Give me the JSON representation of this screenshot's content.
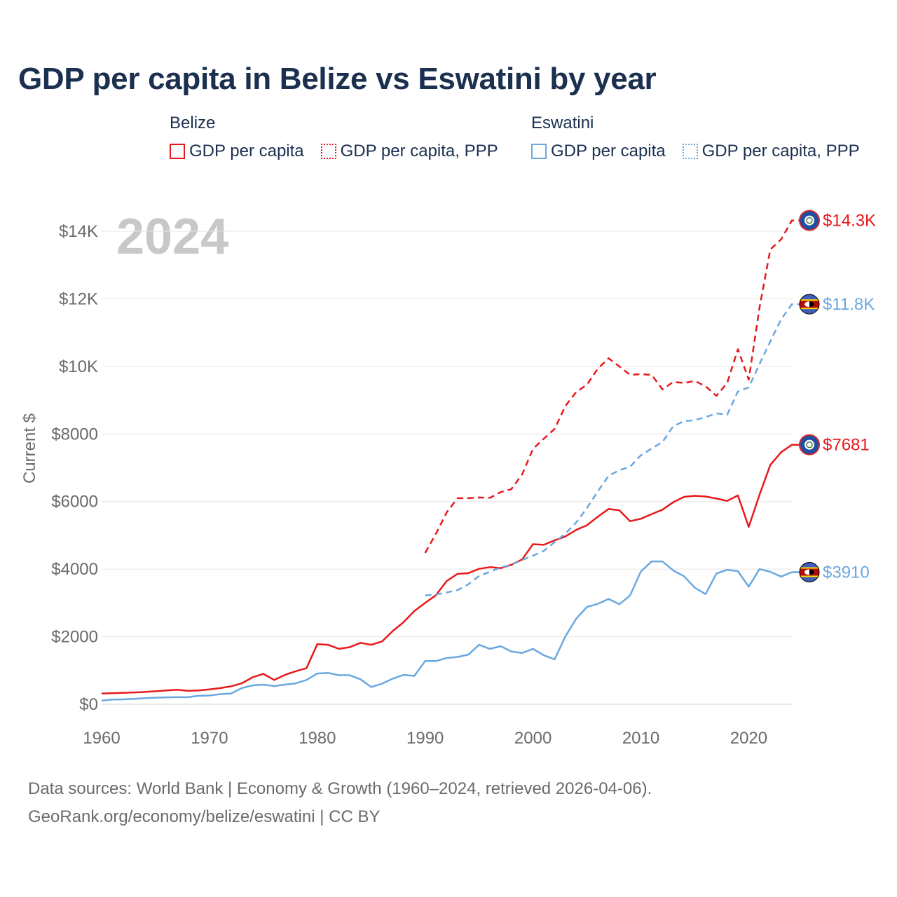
{
  "title": "GDP per capita in Belize vs Eswatini by year",
  "legend": {
    "groups": [
      {
        "name": "Belize",
        "color": "#e8191c",
        "items": [
          "GDP per capita",
          "GDP per capita, PPP"
        ]
      },
      {
        "name": "Eswatini",
        "color": "#6aa8e0",
        "items": [
          "GDP per capita",
          "GDP per capita, PPP"
        ]
      }
    ]
  },
  "year_watermark": "2024",
  "footer": {
    "line1": "Data sources: World Bank | Economy & Growth (1960–2024, retrieved 2026-04-06).",
    "line2": "GeoRank.org/economy/belize/eswatini | CC BY"
  },
  "chart_data": {
    "type": "line",
    "title": "GDP per capita in Belize vs Eswatini by year",
    "xlabel": "",
    "ylabel": "Current $",
    "xlim": [
      1960,
      2024
    ],
    "ylim": [
      0,
      14000
    ],
    "x_ticks": [
      1960,
      1970,
      1980,
      1990,
      2000,
      2010,
      2020
    ],
    "y_ticks": [
      0,
      2000,
      4000,
      6000,
      8000,
      10000,
      12000,
      14000
    ],
    "y_tick_labels": [
      "$0",
      "$2000",
      "$4000",
      "$6000",
      "$8000",
      "$10K",
      "$12K",
      "$14K"
    ],
    "grid": true,
    "series": [
      {
        "name": "Belize GDP per capita",
        "country": "Belize",
        "color": "#e8191c",
        "dash": "solid",
        "end_label": "$7681",
        "x": [
          1960,
          1961,
          1962,
          1963,
          1964,
          1965,
          1966,
          1967,
          1968,
          1969,
          1970,
          1971,
          1972,
          1973,
          1974,
          1975,
          1976,
          1977,
          1978,
          1979,
          1980,
          1981,
          1982,
          1983,
          1984,
          1985,
          1986,
          1987,
          1988,
          1989,
          1990,
          1991,
          1992,
          1993,
          1994,
          1995,
          1996,
          1997,
          1998,
          1999,
          2000,
          2001,
          2002,
          2003,
          2004,
          2005,
          2006,
          2007,
          2008,
          2009,
          2010,
          2011,
          2012,
          2013,
          2014,
          2015,
          2016,
          2017,
          2018,
          2019,
          2020,
          2021,
          2022,
          2023,
          2024
        ],
        "y": [
          320,
          330,
          340,
          350,
          365,
          385,
          410,
          430,
          400,
          410,
          440,
          480,
          530,
          620,
          800,
          900,
          720,
          870,
          980,
          1070,
          1780,
          1760,
          1640,
          1690,
          1820,
          1760,
          1860,
          2170,
          2430,
          2760,
          3000,
          3230,
          3650,
          3860,
          3880,
          4010,
          4060,
          4030,
          4130,
          4290,
          4740,
          4720,
          4850,
          4970,
          5160,
          5300,
          5550,
          5780,
          5740,
          5420,
          5490,
          5630,
          5760,
          5980,
          6140,
          6170,
          6150,
          6090,
          6020,
          6180,
          5250,
          6200,
          7080,
          7460,
          7681
        ]
      },
      {
        "name": "Belize GDP per capita, PPP",
        "country": "Belize",
        "color": "#e8191c",
        "dash": "dashed",
        "end_label": "$14.3K",
        "x": [
          1990,
          1991,
          1992,
          1993,
          1994,
          1995,
          1996,
          1997,
          1998,
          1999,
          2000,
          2001,
          2002,
          2003,
          2004,
          2005,
          2006,
          2007,
          2008,
          2009,
          2010,
          2011,
          2012,
          2013,
          2014,
          2015,
          2016,
          2017,
          2018,
          2019,
          2020,
          2021,
          2022,
          2023,
          2024
        ],
        "y": [
          4480,
          5050,
          5680,
          6100,
          6100,
          6120,
          6110,
          6280,
          6370,
          6810,
          7560,
          7860,
          8150,
          8830,
          9240,
          9460,
          9930,
          10240,
          10000,
          9750,
          9770,
          9750,
          9320,
          9540,
          9510,
          9570,
          9410,
          9130,
          9510,
          10510,
          9610,
          11740,
          13460,
          13760,
          14320
        ]
      },
      {
        "name": "Eswatini GDP per capita",
        "country": "Eswatini",
        "color": "#6aa8e0",
        "dash": "solid",
        "end_label": "$3910",
        "x": [
          1960,
          1961,
          1962,
          1963,
          1964,
          1965,
          1966,
          1967,
          1968,
          1969,
          1970,
          1971,
          1972,
          1973,
          1974,
          1975,
          1976,
          1977,
          1978,
          1979,
          1980,
          1981,
          1982,
          1983,
          1984,
          1985,
          1986,
          1987,
          1988,
          1989,
          1990,
          1991,
          1992,
          1993,
          1994,
          1995,
          1996,
          1997,
          1998,
          1999,
          2000,
          2001,
          2002,
          2003,
          2004,
          2005,
          2006,
          2007,
          2008,
          2009,
          2010,
          2011,
          2012,
          2013,
          2014,
          2015,
          2016,
          2017,
          2018,
          2019,
          2020,
          2021,
          2022,
          2023,
          2024
        ],
        "y": [
          110,
          140,
          145,
          160,
          180,
          195,
          205,
          210,
          210,
          250,
          260,
          300,
          320,
          480,
          560,
          580,
          540,
          580,
          620,
          720,
          910,
          930,
          860,
          860,
          740,
          510,
          610,
          760,
          870,
          840,
          1280,
          1280,
          1370,
          1400,
          1470,
          1760,
          1640,
          1720,
          1560,
          1520,
          1640,
          1450,
          1330,
          2010,
          2530,
          2880,
          2970,
          3120,
          2960,
          3220,
          3930,
          4230,
          4230,
          3960,
          3790,
          3450,
          3260,
          3870,
          3980,
          3940,
          3480,
          4000,
          3920,
          3780,
          3910
        ]
      },
      {
        "name": "Eswatini GDP per capita, PPP",
        "country": "Eswatini",
        "color": "#6aa8e0",
        "dash": "dashed",
        "end_label": "$11.8K",
        "x": [
          1990,
          1991,
          1992,
          1993,
          1994,
          1995,
          1996,
          1997,
          1998,
          1999,
          2000,
          2001,
          2002,
          2003,
          2004,
          2005,
          2006,
          2007,
          2008,
          2009,
          2010,
          2011,
          2012,
          2013,
          2014,
          2015,
          2016,
          2017,
          2018,
          2019,
          2020,
          2021,
          2022,
          2023,
          2024
        ],
        "y": [
          3220,
          3250,
          3310,
          3380,
          3550,
          3800,
          3920,
          4050,
          4130,
          4270,
          4400,
          4540,
          4800,
          5050,
          5380,
          5810,
          6300,
          6760,
          6930,
          7030,
          7370,
          7570,
          7760,
          8230,
          8380,
          8410,
          8500,
          8610,
          8570,
          9260,
          9380,
          10070,
          10740,
          11390,
          11840
        ]
      }
    ]
  }
}
